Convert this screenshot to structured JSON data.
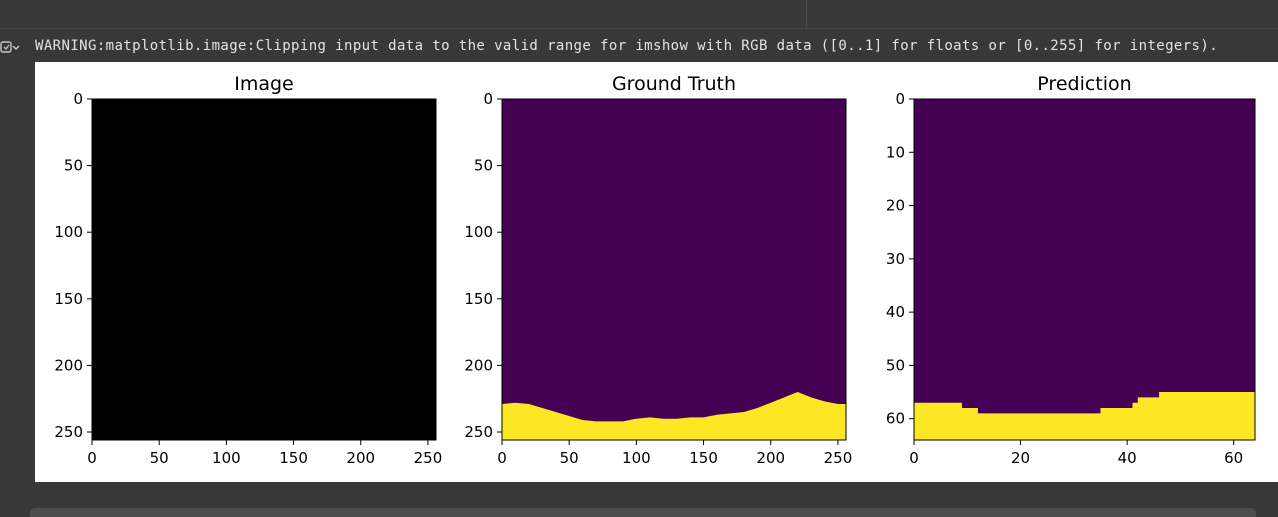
{
  "toolbar": {
    "output_toggle_icon": "output-collapse-icon"
  },
  "output": {
    "warning_text": "WARNING:matplotlib.image:Clipping input data to the valid range for imshow with RGB data ([0..1] for floats or [0..255] for integers)."
  },
  "colors": {
    "dark_background": "#383838",
    "figure_background": "#ffffff",
    "viridis_low": "#440154",
    "viridis_high": "#fde725",
    "image_black": "#000000"
  },
  "chart_data": [
    {
      "type": "heatmap",
      "title": "Image",
      "xlim": [
        0,
        256
      ],
      "ylim": [
        256,
        0
      ],
      "x_ticks": [
        0,
        50,
        100,
        150,
        200,
        250
      ],
      "y_ticks": [
        0,
        50,
        100,
        150,
        200,
        250
      ],
      "content": "black image"
    },
    {
      "type": "heatmap",
      "title": "Ground Truth",
      "xlim": [
        0,
        256
      ],
      "ylim": [
        256,
        0
      ],
      "x_ticks": [
        0,
        50,
        100,
        150,
        200,
        250
      ],
      "y_ticks": [
        0,
        50,
        100,
        150,
        200,
        250
      ],
      "colormap": "viridis",
      "boundary_x": [
        0,
        10,
        20,
        30,
        40,
        50,
        60,
        70,
        80,
        90,
        100,
        110,
        120,
        130,
        140,
        150,
        160,
        170,
        180,
        190,
        200,
        210,
        220,
        230,
        240,
        250,
        256
      ],
      "boundary_y": [
        229,
        228,
        229,
        232,
        235,
        238,
        241,
        242,
        242,
        242,
        240,
        239,
        240,
        240,
        239,
        239,
        237,
        236,
        235,
        232,
        228,
        224,
        220,
        224,
        227,
        229,
        229
      ]
    },
    {
      "type": "heatmap",
      "title": "Prediction",
      "xlim": [
        0,
        64
      ],
      "ylim": [
        64,
        0
      ],
      "x_ticks": [
        0,
        20,
        40,
        60
      ],
      "y_ticks": [
        0,
        10,
        20,
        30,
        40,
        50,
        60
      ],
      "colormap": "viridis",
      "boundary_x": [
        0,
        9,
        12,
        35,
        41,
        42,
        46,
        51,
        64
      ],
      "boundary_y": [
        57,
        58,
        59,
        58,
        57,
        56,
        55,
        55,
        55
      ]
    }
  ]
}
